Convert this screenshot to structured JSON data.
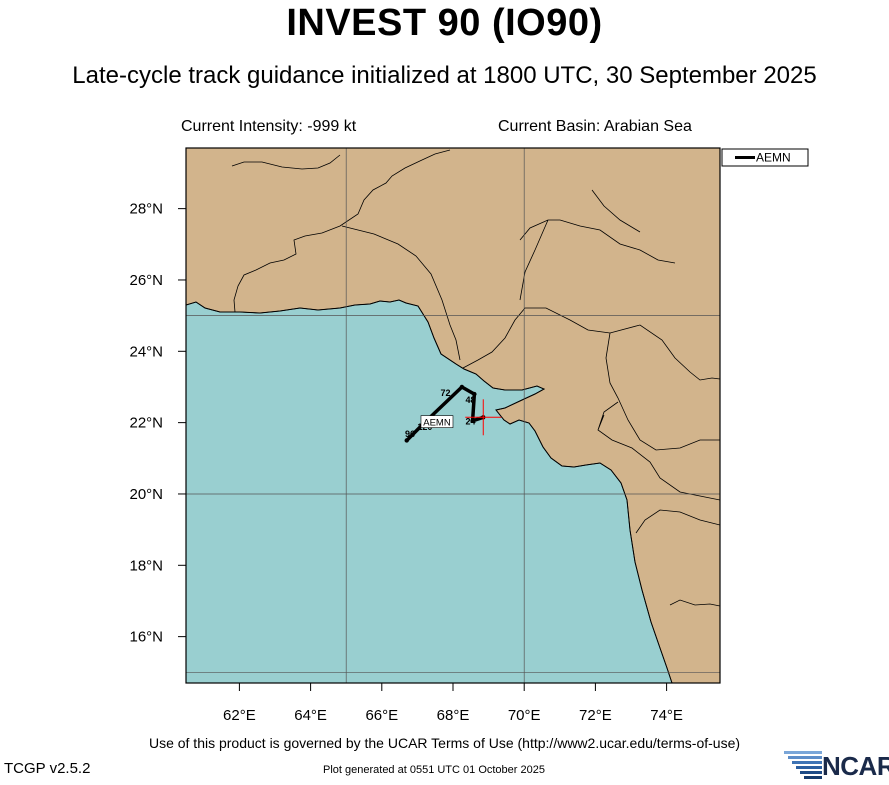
{
  "header": {
    "title": "INVEST 90 (IO90)",
    "subtitle": "Late-cycle track guidance initialized at 1800 UTC, 30 September 2025",
    "current_intensity": "Current Intensity: -999 kt",
    "current_basin": "Current Basin: Arabian Sea"
  },
  "map": {
    "lon_range": [
      60.5,
      75.5
    ],
    "lat_range": [
      14.7,
      29.7
    ],
    "lon_ticks": [
      "62°E",
      "64°E",
      "66°E",
      "68°E",
      "70°E",
      "72°E",
      "74°E"
    ],
    "lat_ticks": [
      "16°N",
      "18°N",
      "20°N",
      "22°N",
      "24°N",
      "26°N",
      "28°N"
    ],
    "colors": {
      "land": "#d2b48c",
      "sea": "#99cfd0",
      "grid": "#555555",
      "border": "#000000",
      "track": "#000000",
      "storm_marker": "#ff0000"
    }
  },
  "legend": {
    "entries": [
      "AEMN"
    ]
  },
  "track": {
    "model": "AEMN",
    "points": [
      {
        "lon": 68.85,
        "lat": 22.15,
        "label": ""
      },
      {
        "lon": 68.55,
        "lat": 22.05,
        "label": "24"
      },
      {
        "lon": 68.6,
        "lat": 22.8,
        "label": "48"
      },
      {
        "lon": 68.25,
        "lat": 23.0,
        "label": "72"
      },
      {
        "lon": 67.2,
        "lat": 22.0,
        "label": "96"
      },
      {
        "lon": 66.7,
        "lat": 21.5,
        "label": "120"
      }
    ],
    "label_positions": [
      {
        "text": "24",
        "lon": 68.35,
        "lat": 21.95
      },
      {
        "text": "48",
        "lon": 68.35,
        "lat": 22.55
      },
      {
        "text": "72",
        "lon": 67.65,
        "lat": 22.75
      },
      {
        "text": "96",
        "lon": 66.65,
        "lat": 21.6
      },
      {
        "text": "120",
        "lon": 67.0,
        "lat": 21.8
      }
    ],
    "model_label": {
      "text": "AEMN",
      "lon": 67.55,
      "lat": 22.0
    },
    "storm_position": {
      "lon": 68.85,
      "lat": 22.15
    }
  },
  "footer": {
    "terms": "Use of this product is governed by the UCAR Terms of Use (http://www2.ucar.edu/terms-of-use)",
    "version": "TCGP v2.5.2",
    "generated": "Plot generated at 0551 UTC   01 October 2025",
    "logo_text": "NCAR"
  }
}
